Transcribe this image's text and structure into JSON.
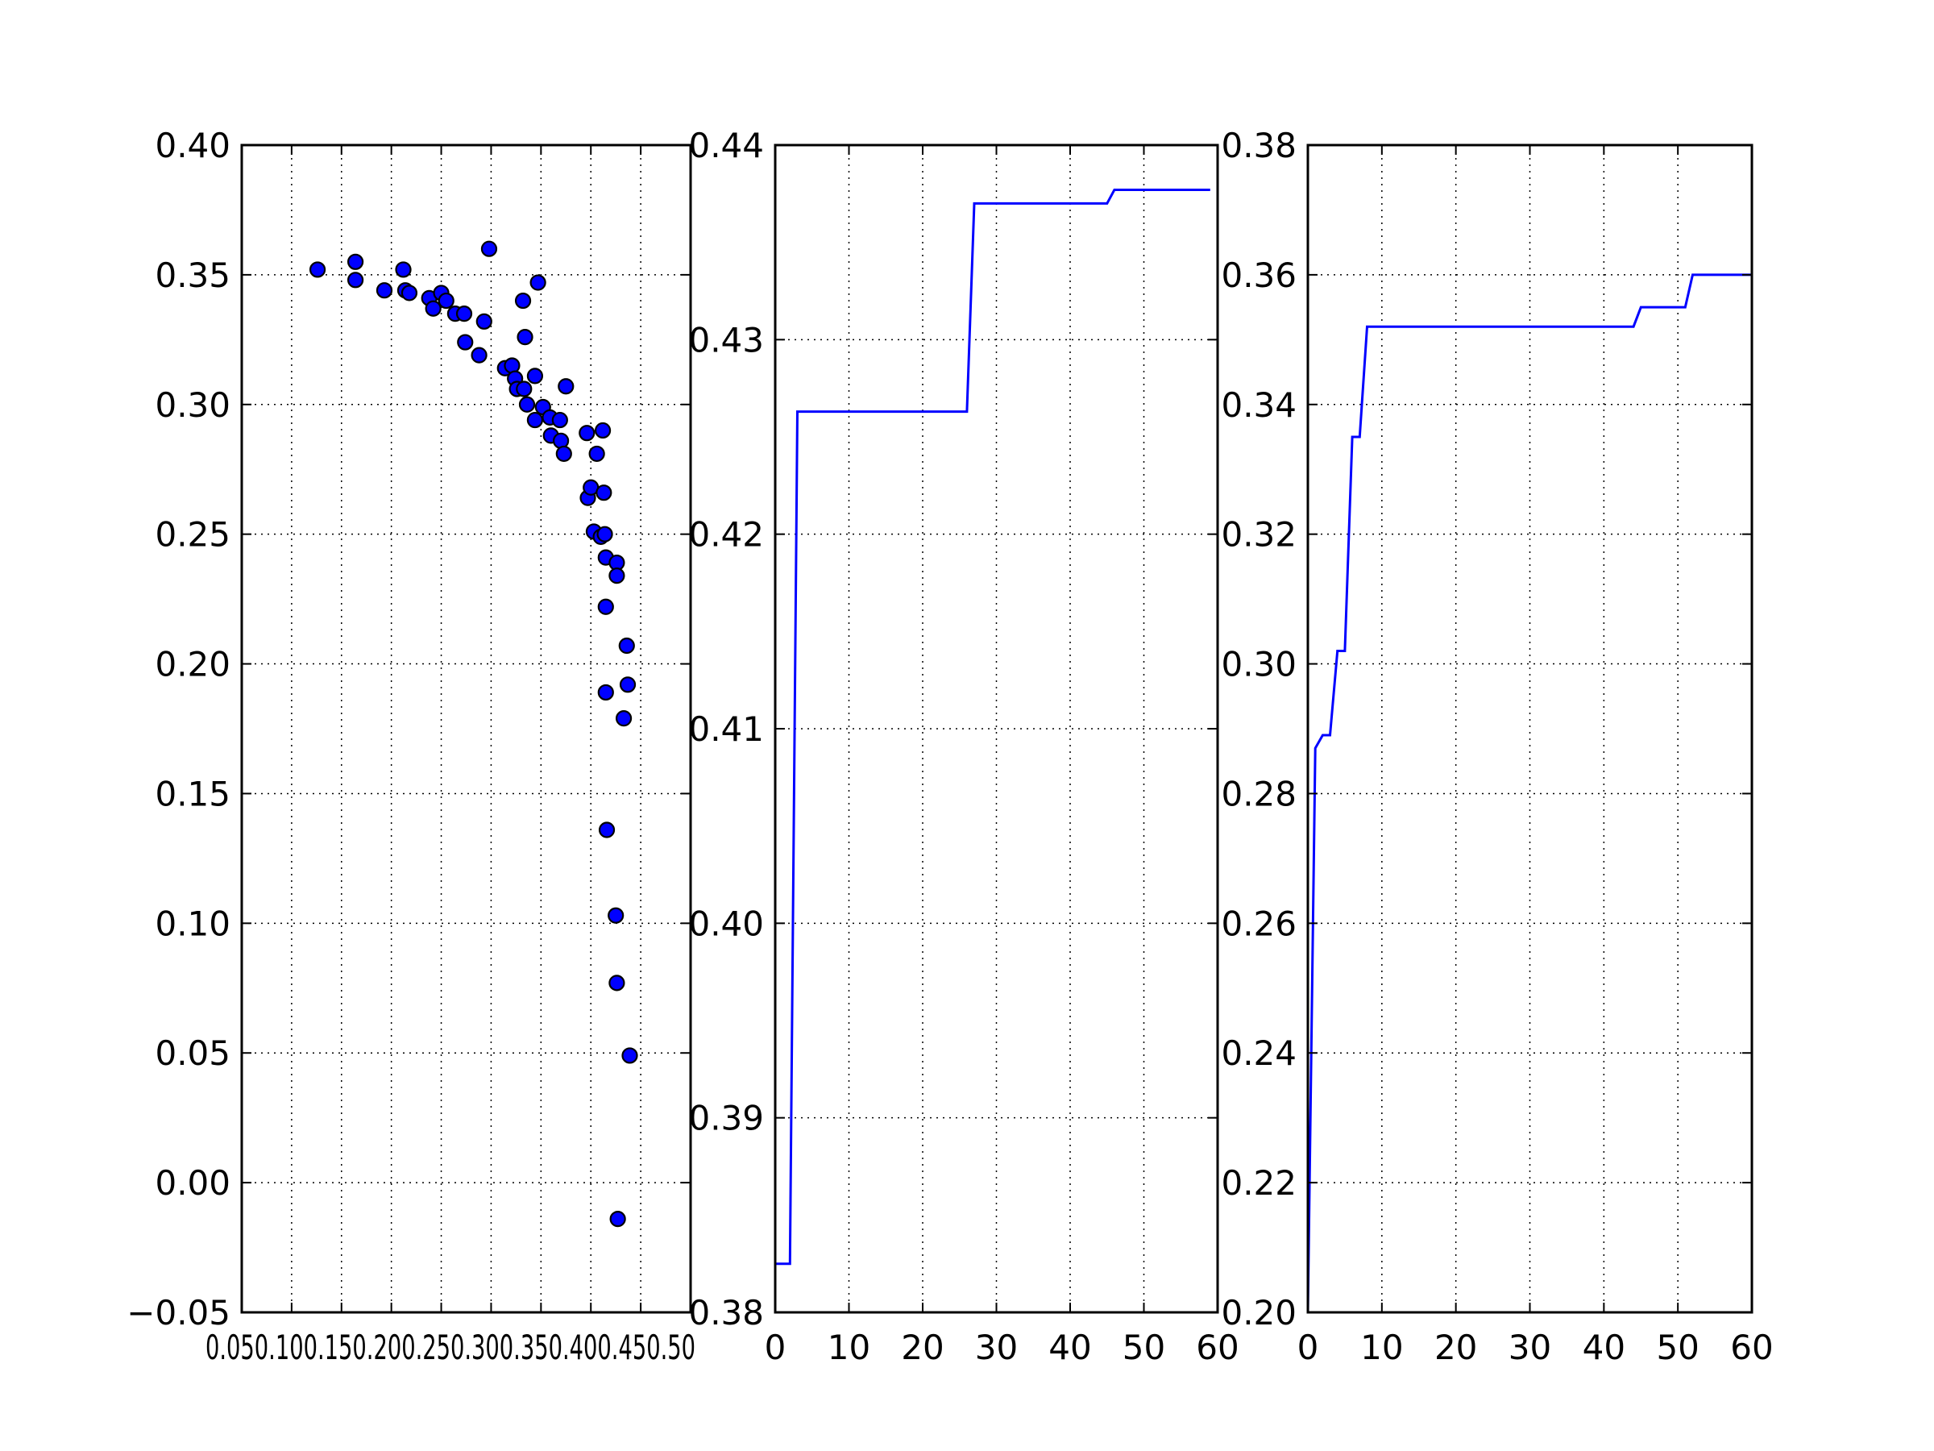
{
  "colors": {
    "marker_fill": "#0000ff",
    "marker_edge": "#000000",
    "line": "#0000ff",
    "axes": "#000000",
    "grid": "#000000",
    "background": "#ffffff"
  },
  "chart_data": [
    {
      "type": "scatter",
      "title": "",
      "xlabel": "",
      "ylabel": "",
      "xlim": [
        0.0,
        0.45
      ],
      "ylim": [
        -0.05,
        0.4
      ],
      "grid": true,
      "x_ticks": [
        "0.05",
        "0.10",
        "0.15",
        "0.20",
        "0.25",
        "0.30",
        "0.35",
        "0.40",
        "0.45",
        "0.50"
      ],
      "y_ticks": [
        "0.40",
        "0.35",
        "0.30",
        "0.25",
        "0.20",
        "0.15",
        "0.10",
        "0.05",
        "0.00",
        "−0.05"
      ],
      "x_tick_values": [
        0.05,
        0.1,
        0.15,
        0.2,
        0.25,
        0.3,
        0.35,
        0.4,
        0.45,
        0.5
      ],
      "y_tick_values": [
        0.4,
        0.35,
        0.3,
        0.25,
        0.2,
        0.15,
        0.1,
        0.05,
        0.0,
        -0.05
      ],
      "x_tick_label_text": "0.050.100.150.200.250.300.350.400.450.50",
      "points": [
        [
          0.076,
          0.352
        ],
        [
          0.114,
          0.355
        ],
        [
          0.114,
          0.348
        ],
        [
          0.143,
          0.344
        ],
        [
          0.162,
          0.352
        ],
        [
          0.164,
          0.344
        ],
        [
          0.168,
          0.343
        ],
        [
          0.188,
          0.341
        ],
        [
          0.192,
          0.337
        ],
        [
          0.2,
          0.343
        ],
        [
          0.205,
          0.34
        ],
        [
          0.214,
          0.335
        ],
        [
          0.223,
          0.335
        ],
        [
          0.224,
          0.324
        ],
        [
          0.238,
          0.319
        ],
        [
          0.243,
          0.332
        ],
        [
          0.248,
          0.36
        ],
        [
          0.264,
          0.314
        ],
        [
          0.271,
          0.315
        ],
        [
          0.274,
          0.31
        ],
        [
          0.276,
          0.306
        ],
        [
          0.282,
          0.34
        ],
        [
          0.283,
          0.306
        ],
        [
          0.284,
          0.326
        ],
        [
          0.286,
          0.3
        ],
        [
          0.294,
          0.311
        ],
        [
          0.294,
          0.294
        ],
        [
          0.297,
          0.347
        ],
        [
          0.302,
          0.299
        ],
        [
          0.309,
          0.295
        ],
        [
          0.31,
          0.288
        ],
        [
          0.319,
          0.294
        ],
        [
          0.32,
          0.286
        ],
        [
          0.323,
          0.281
        ],
        [
          0.325,
          0.307
        ],
        [
          0.346,
          0.289
        ],
        [
          0.347,
          0.264
        ],
        [
          0.35,
          0.268
        ],
        [
          0.353,
          0.251
        ],
        [
          0.356,
          0.281
        ],
        [
          0.36,
          0.249
        ],
        [
          0.362,
          0.29
        ],
        [
          0.364,
          0.25
        ],
        [
          0.363,
          0.266
        ],
        [
          0.365,
          0.241
        ],
        [
          0.365,
          0.222
        ],
        [
          0.365,
          0.189
        ],
        [
          0.366,
          0.136
        ],
        [
          0.376,
          0.239
        ],
        [
          0.376,
          0.234
        ],
        [
          0.375,
          0.103
        ],
        [
          0.376,
          0.077
        ],
        [
          0.377,
          -0.014
        ],
        [
          0.383,
          0.179
        ],
        [
          0.386,
          0.207
        ],
        [
          0.387,
          0.192
        ],
        [
          0.389,
          0.049
        ]
      ]
    },
    {
      "type": "line",
      "title": "",
      "xlabel": "",
      "ylabel": "",
      "xlim": [
        0,
        60
      ],
      "ylim": [
        0.38,
        0.44
      ],
      "grid": true,
      "x_ticks": [
        "0",
        "10",
        "20",
        "30",
        "40",
        "50",
        "60"
      ],
      "y_ticks": [
        "0.44",
        "0.43",
        "0.42",
        "0.41",
        "0.40",
        "0.39",
        "0.38"
      ],
      "x_tick_values": [
        0,
        10,
        20,
        30,
        40,
        50,
        60
      ],
      "y_tick_values": [
        0.44,
        0.43,
        0.42,
        0.41,
        0.4,
        0.39,
        0.38
      ],
      "x": [
        0,
        2,
        3,
        26,
        27,
        45,
        46,
        59
      ],
      "y": [
        0.3825,
        0.3825,
        0.4263,
        0.4263,
        0.437,
        0.437,
        0.4377,
        0.4377
      ]
    },
    {
      "type": "line",
      "title": "",
      "xlabel": "",
      "ylabel": "",
      "xlim": [
        0,
        60
      ],
      "ylim": [
        0.2,
        0.38
      ],
      "grid": true,
      "x_ticks": [
        "0",
        "10",
        "20",
        "30",
        "40",
        "50",
        "60"
      ],
      "y_ticks": [
        "0.38",
        "0.36",
        "0.34",
        "0.32",
        "0.30",
        "0.28",
        "0.26",
        "0.24",
        "0.22",
        "0.20"
      ],
      "x_tick_values": [
        0,
        10,
        20,
        30,
        40,
        50,
        60
      ],
      "y_tick_values": [
        0.38,
        0.36,
        0.34,
        0.32,
        0.3,
        0.28,
        0.26,
        0.24,
        0.22,
        0.2
      ],
      "x": [
        0,
        1,
        2,
        3,
        4,
        5,
        6,
        7,
        8,
        44,
        45,
        51,
        52,
        60
      ],
      "y": [
        0.2,
        0.287,
        0.289,
        0.289,
        0.302,
        0.302,
        0.335,
        0.335,
        0.352,
        0.352,
        0.355,
        0.355,
        0.36,
        0.36
      ]
    }
  ]
}
